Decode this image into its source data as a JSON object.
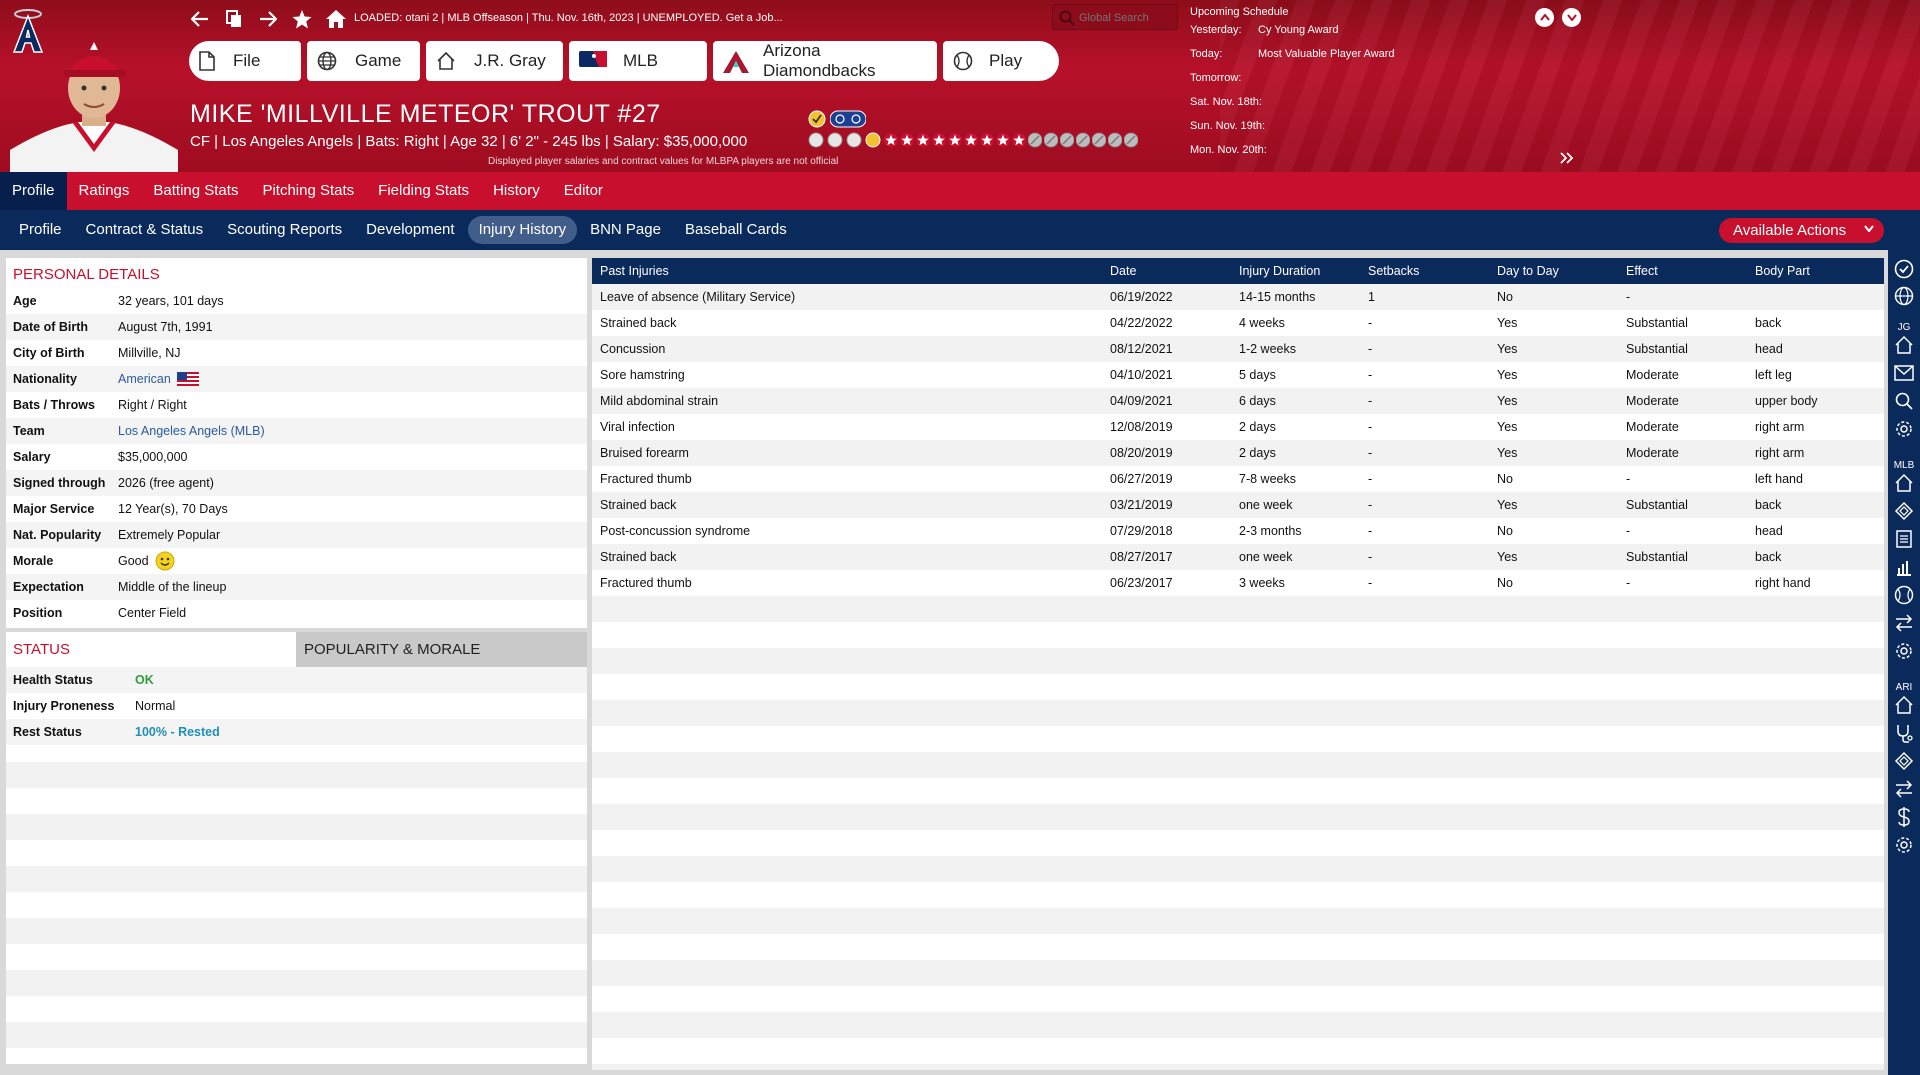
{
  "header": {
    "loaded_text": "LOADED: otani 2  |  MLB Offseason  |  Thu. Nov. 16th, 2023  |  UNEMPLOYED. Get a Job...",
    "search_placeholder": "Global Search",
    "tabs": [
      {
        "label": "File",
        "icon": "file-icon"
      },
      {
        "label": "Game",
        "icon": "globe-icon"
      },
      {
        "label": "J.R. Gray",
        "icon": "home-icon"
      },
      {
        "label": "MLB",
        "icon": "mlb-logo-icon"
      },
      {
        "label": "Arizona Diamondbacks",
        "icon": "diamondbacks-logo-icon"
      },
      {
        "label": "Play",
        "icon": "baseball-icon"
      }
    ]
  },
  "player": {
    "name": "MIKE 'MILLVILLE METEOR' TROUT  #27",
    "info": "CF | Los Angeles Angels  |  Bats: Right  |  Age 32  |  6' 2\" - 245 lbs  |  Salary: $35,000,000",
    "disclaimer": "Displayed player salaries and contract values for MLBPA players are not official",
    "rating_stars": 9,
    "rating_max": 16
  },
  "schedule": {
    "title": "Upcoming Schedule",
    "rows": [
      {
        "day": "Yesterday:",
        "event": "Cy Young Award"
      },
      {
        "day": "Today:",
        "event": "Most Valuable Player Award"
      },
      {
        "day": "Tomorrow:",
        "event": ""
      },
      {
        "day": "Sat. Nov. 18th:",
        "event": ""
      },
      {
        "day": "Sun. Nov. 19th:",
        "event": ""
      },
      {
        "day": "Mon. Nov. 20th:",
        "event": ""
      }
    ]
  },
  "menu_main": [
    "Profile",
    "Ratings",
    "Batting Stats",
    "Pitching Stats",
    "Fielding Stats",
    "History",
    "Editor"
  ],
  "menu_sub": [
    "Profile",
    "Contract & Status",
    "Scouting Reports",
    "Development",
    "Injury History",
    "BNN Page",
    "Baseball Cards"
  ],
  "available_actions": "Available Actions",
  "personal": {
    "title": "PERSONAL DETAILS",
    "rows": [
      {
        "k": "Age",
        "v": "32 years, 101 days"
      },
      {
        "k": "Date of Birth",
        "v": "August 7th, 1991"
      },
      {
        "k": "City of Birth",
        "v": "Millville, NJ"
      },
      {
        "k": "Nationality",
        "v": "American"
      },
      {
        "k": "Bats / Throws",
        "v": "Right / Right"
      },
      {
        "k": "Team",
        "v": "Los Angeles Angels (MLB)"
      },
      {
        "k": "Salary",
        "v": "$35,000,000"
      },
      {
        "k": "Signed through",
        "v": "2026 (free agent)"
      },
      {
        "k": "Major Service",
        "v": "12 Year(s), 70 Days"
      },
      {
        "k": "Nat. Popularity",
        "v": "Extremely Popular"
      },
      {
        "k": "Morale",
        "v": "Good"
      },
      {
        "k": "Expectation",
        "v": "Middle of the lineup"
      },
      {
        "k": "Position",
        "v": "Center Field"
      }
    ]
  },
  "status": {
    "tab1": "STATUS",
    "tab2": "POPULARITY & MORALE",
    "rows": [
      {
        "k": "Health Status",
        "v": "OK",
        "color": "#2e9e3e"
      },
      {
        "k": "Injury Proneness",
        "v": "Normal",
        "color": "#111111"
      },
      {
        "k": "Rest Status",
        "v": "100% - Rested",
        "color": "#1f8fb5"
      }
    ]
  },
  "injuries": {
    "headers": [
      "Past Injuries",
      "Date",
      "Injury Duration",
      "Setbacks",
      "Day to Day",
      "Effect",
      "Body Part"
    ],
    "rows": [
      [
        "Leave of absence (Military Service)",
        "06/19/2022",
        "14-15 months",
        "1",
        "No",
        "-",
        ""
      ],
      [
        "Strained back",
        "04/22/2022",
        "4 weeks",
        "-",
        "Yes",
        "Substantial",
        "back"
      ],
      [
        "Concussion",
        "08/12/2021",
        "1-2 weeks",
        "-",
        "Yes",
        "Substantial",
        "head"
      ],
      [
        "Sore hamstring",
        "04/10/2021",
        "5 days",
        "-",
        "Yes",
        "Moderate",
        "left leg"
      ],
      [
        "Mild abdominal strain",
        "04/09/2021",
        "6 days",
        "-",
        "Yes",
        "Moderate",
        "upper body"
      ],
      [
        "Viral infection",
        "12/08/2019",
        "2 days",
        "-",
        "Yes",
        "Moderate",
        "right arm"
      ],
      [
        "Bruised forearm",
        "08/20/2019",
        "2 days",
        "-",
        "Yes",
        "Moderate",
        "right arm"
      ],
      [
        "Fractured thumb",
        "06/27/2019",
        "7-8 weeks",
        "-",
        "No",
        "-",
        "left hand"
      ],
      [
        "Strained back",
        "03/21/2019",
        "one week",
        "-",
        "Yes",
        "Substantial",
        "back"
      ],
      [
        "Post-concussion syndrome",
        "07/29/2018",
        "2-3 months",
        "-",
        "No",
        "-",
        "head"
      ],
      [
        "Strained back",
        "08/27/2017",
        "one week",
        "-",
        "Yes",
        "Substantial",
        "back"
      ],
      [
        "Fractured thumb",
        "06/23/2017",
        "3 weeks",
        "-",
        "No",
        "-",
        "right hand"
      ]
    ]
  },
  "sidebar": {
    "labels": [
      "JG",
      "MLB",
      "ARI"
    ]
  },
  "colors": {
    "header_red": "#b7112a",
    "menu_red": "#c8102e",
    "navy": "#0a2a5c",
    "active_sub": "#415d8a"
  }
}
